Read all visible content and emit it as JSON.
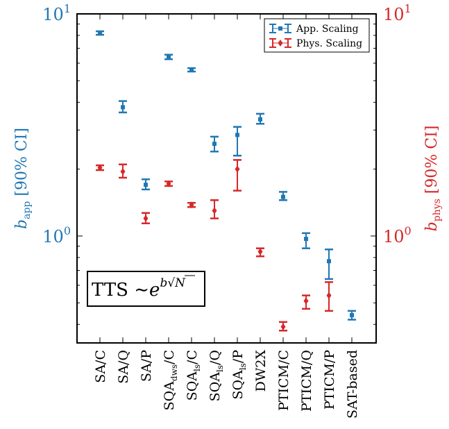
{
  "chart_data": {
    "type": "scatter",
    "categories": [
      {
        "main": "SA/C",
        "sub": ""
      },
      {
        "main": "SA/Q",
        "sub": ""
      },
      {
        "main": "SA/P",
        "sub": ""
      },
      {
        "main": "SQA",
        "sub": "dws",
        "tail": "/C"
      },
      {
        "main": "SQA",
        "sub": "ls",
        "tail": "/C"
      },
      {
        "main": "SQA",
        "sub": "ls",
        "tail": "/Q"
      },
      {
        "main": "SQA",
        "sub": "ls",
        "tail": "/P"
      },
      {
        "main": "DW2X",
        "sub": ""
      },
      {
        "main": "PTICM/C",
        "sub": ""
      },
      {
        "main": "PTICM/Q",
        "sub": ""
      },
      {
        "main": "PTICM/P",
        "sub": ""
      },
      {
        "main": "SAT-based",
        "sub": ""
      }
    ],
    "left_axis": {
      "label_main": "b",
      "label_sub": "app",
      "label_tail": " [90% CI]",
      "scale": "log",
      "ylim": [
        0.33,
        10
      ],
      "major_ticks": [
        {
          "base": "10",
          "exp": "0",
          "value": 1
        },
        {
          "base": "10",
          "exp": "1",
          "value": 10
        }
      ],
      "color": "#1f77b4"
    },
    "right_axis": {
      "label_main": "b",
      "label_sub": "phys",
      "label_tail": " [90% CI]",
      "scale": "log",
      "ylim": [
        0.33,
        10
      ],
      "major_ticks": [
        {
          "base": "10",
          "exp": "0",
          "value": 1
        },
        {
          "base": "10",
          "exp": "1",
          "value": 10
        }
      ],
      "color": "#d62728"
    },
    "series": [
      {
        "name": "App. Scaling",
        "color": "#1f77b4",
        "marker": "square",
        "points": [
          {
            "cat": 0,
            "y": 8.2,
            "lo": 8.05,
            "hi": 8.35
          },
          {
            "cat": 1,
            "y": 3.8,
            "lo": 3.6,
            "hi": 4.05
          },
          {
            "cat": 2,
            "y": 1.7,
            "lo": 1.62,
            "hi": 1.8
          },
          {
            "cat": 3,
            "y": 6.4,
            "lo": 6.25,
            "hi": 6.55
          },
          {
            "cat": 4,
            "y": 5.6,
            "lo": 5.5,
            "hi": 5.7
          },
          {
            "cat": 5,
            "y": 2.6,
            "lo": 2.4,
            "hi": 2.8
          },
          {
            "cat": 6,
            "y": 2.85,
            "lo": 2.3,
            "hi": 3.1
          },
          {
            "cat": 7,
            "y": 3.35,
            "lo": 3.2,
            "hi": 3.55
          },
          {
            "cat": 8,
            "y": 1.5,
            "lo": 1.45,
            "hi": 1.58
          },
          {
            "cat": 9,
            "y": 0.97,
            "lo": 0.88,
            "hi": 1.03
          },
          {
            "cat": 10,
            "y": 0.77,
            "lo": 0.64,
            "hi": 0.87
          },
          {
            "cat": 11,
            "y": 0.44,
            "lo": 0.42,
            "hi": 0.46
          }
        ]
      },
      {
        "name": "Phys. Scaling",
        "color": "#d62728",
        "marker": "diamond",
        "points": [
          {
            "cat": 0,
            "y": 2.03,
            "lo": 1.98,
            "hi": 2.08
          },
          {
            "cat": 1,
            "y": 1.95,
            "lo": 1.83,
            "hi": 2.1
          },
          {
            "cat": 2,
            "y": 1.2,
            "lo": 1.14,
            "hi": 1.27
          },
          {
            "cat": 3,
            "y": 1.72,
            "lo": 1.68,
            "hi": 1.76
          },
          {
            "cat": 4,
            "y": 1.38,
            "lo": 1.35,
            "hi": 1.41
          },
          {
            "cat": 5,
            "y": 1.3,
            "lo": 1.2,
            "hi": 1.45
          },
          {
            "cat": 6,
            "y": 2.0,
            "lo": 1.6,
            "hi": 2.2
          },
          {
            "cat": 7,
            "y": 0.85,
            "lo": 0.81,
            "hi": 0.88
          },
          {
            "cat": 8,
            "y": 0.39,
            "lo": 0.375,
            "hi": 0.41
          },
          {
            "cat": 9,
            "y": 0.51,
            "lo": 0.47,
            "hi": 0.54
          },
          {
            "cat": 10,
            "y": 0.54,
            "lo": 0.46,
            "hi": 0.62
          }
        ]
      }
    ],
    "annotation": {
      "prefix": "TTS",
      "sim": "∼",
      "base": "e",
      "exp_b": "b",
      "exp_n": "N"
    },
    "legend": "top-right",
    "grid": false
  }
}
